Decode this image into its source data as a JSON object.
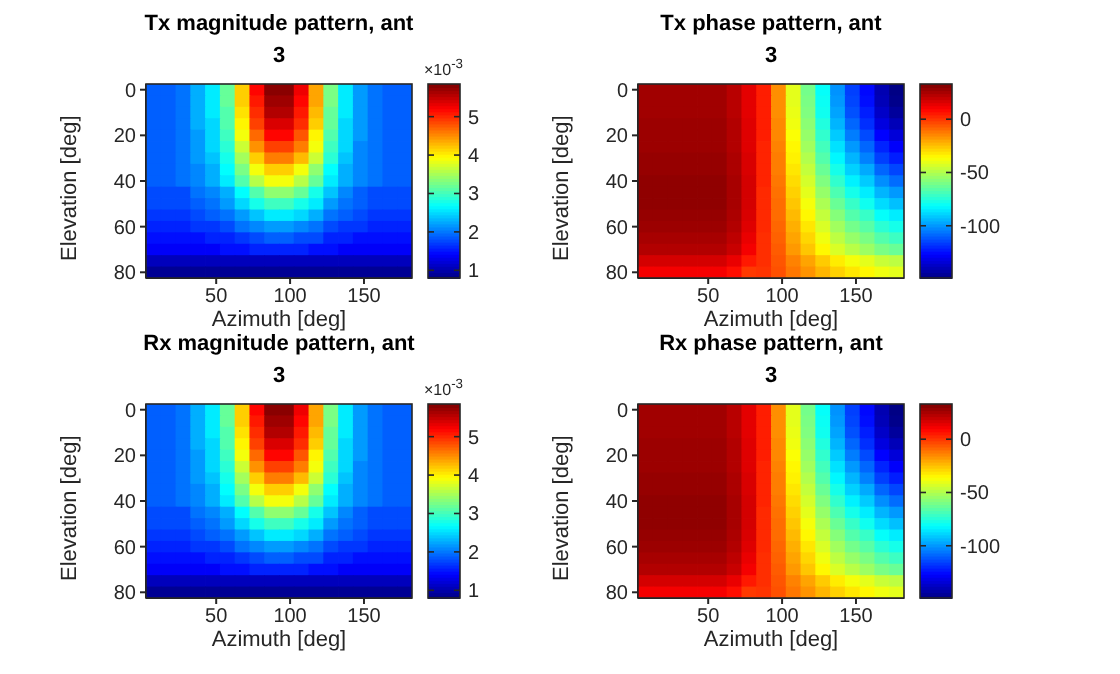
{
  "chart_data": [
    {
      "type": "heatmap",
      "title": "Tx magnitude pattern, ant 3",
      "xlabel": "Azimuth [deg]",
      "ylabel": "Elevation [deg]",
      "annotations": [
        "×10$^{-3}$"
      ],
      "x": [
        7.5,
        17.5,
        27.5,
        37.5,
        47.5,
        57.5,
        67.5,
        77.5,
        87.5,
        97.5,
        107.5,
        117.5,
        127.5,
        137.5,
        147.5,
        157.5,
        167.5,
        177.5
      ],
      "y": [
        0,
        5,
        10,
        15,
        20,
        25,
        30,
        35,
        40,
        45,
        50,
        55,
        60,
        65,
        70,
        75,
        80
      ],
      "xlim": [
        2.5,
        182.5
      ],
      "xticks": [
        50,
        100,
        150
      ],
      "ylim": [
        82.5,
        -2.5
      ],
      "yticks": [
        0,
        20,
        40,
        60,
        80
      ],
      "clim": [
        0.8,
        5.85
      ],
      "cticks": [
        1,
        2,
        3,
        4,
        5
      ],
      "cells": [
        [
          1.9,
          1.9,
          2.0,
          2.3,
          2.6,
          3.2,
          4.2,
          5.2,
          5.8,
          5.8,
          5.3,
          4.4,
          3.3,
          2.6,
          2.2,
          2.0,
          1.9,
          1.9
        ],
        [
          1.9,
          1.9,
          2.0,
          2.3,
          2.6,
          3.2,
          4.2,
          5.1,
          5.7,
          5.7,
          5.2,
          4.4,
          3.3,
          2.6,
          2.2,
          2.0,
          1.9,
          1.9
        ],
        [
          1.9,
          1.9,
          2.0,
          2.3,
          2.6,
          3.1,
          4.1,
          5.0,
          5.6,
          5.6,
          5.1,
          4.3,
          3.2,
          2.6,
          2.2,
          2.0,
          1.9,
          1.9
        ],
        [
          1.9,
          1.9,
          2.0,
          2.3,
          2.5,
          3.1,
          4.0,
          4.9,
          5.4,
          5.4,
          5.0,
          4.2,
          3.2,
          2.5,
          2.2,
          2.0,
          1.9,
          1.9
        ],
        [
          1.9,
          1.9,
          2.0,
          2.2,
          2.5,
          3.0,
          3.9,
          4.7,
          5.2,
          5.2,
          4.8,
          4.0,
          3.1,
          2.5,
          2.2,
          2.0,
          1.9,
          1.9
        ],
        [
          1.9,
          1.9,
          2.0,
          2.2,
          2.5,
          2.9,
          3.7,
          4.5,
          4.9,
          4.9,
          4.6,
          3.9,
          3.0,
          2.5,
          2.1,
          2.0,
          1.9,
          1.9
        ],
        [
          1.9,
          1.9,
          2.0,
          2.2,
          2.4,
          2.8,
          3.5,
          4.2,
          4.6,
          4.6,
          4.3,
          3.7,
          2.9,
          2.4,
          2.1,
          2.0,
          1.9,
          1.9
        ],
        [
          1.9,
          1.9,
          2.0,
          2.1,
          2.3,
          2.7,
          3.3,
          3.9,
          4.2,
          4.2,
          3.9,
          3.4,
          2.7,
          2.3,
          2.1,
          2.0,
          1.9,
          1.9
        ],
        [
          1.9,
          1.9,
          2.0,
          2.1,
          2.3,
          2.6,
          3.1,
          3.6,
          3.9,
          3.9,
          3.6,
          3.2,
          2.6,
          2.3,
          2.1,
          2.0,
          1.9,
          1.9
        ],
        [
          1.8,
          1.8,
          1.8,
          2.0,
          2.1,
          2.3,
          2.7,
          3.1,
          3.4,
          3.4,
          3.2,
          2.8,
          2.4,
          2.1,
          1.9,
          1.8,
          1.8,
          1.8
        ],
        [
          1.8,
          1.8,
          1.8,
          1.9,
          2.0,
          2.2,
          2.5,
          2.8,
          3.0,
          3.0,
          2.8,
          2.6,
          2.2,
          2.0,
          1.9,
          1.8,
          1.8,
          1.8
        ],
        [
          1.7,
          1.7,
          1.7,
          1.8,
          1.9,
          2.0,
          2.2,
          2.4,
          2.6,
          2.6,
          2.5,
          2.3,
          2.0,
          1.9,
          1.8,
          1.7,
          1.7,
          1.7
        ],
        [
          1.6,
          1.6,
          1.6,
          1.7,
          1.7,
          1.8,
          2.0,
          2.1,
          2.2,
          2.2,
          2.1,
          2.0,
          1.8,
          1.7,
          1.7,
          1.6,
          1.6,
          1.6
        ],
        [
          1.5,
          1.5,
          1.5,
          1.5,
          1.6,
          1.6,
          1.7,
          1.8,
          1.9,
          1.9,
          1.8,
          1.8,
          1.6,
          1.6,
          1.5,
          1.5,
          1.5,
          1.5
        ],
        [
          1.4,
          1.4,
          1.4,
          1.4,
          1.4,
          1.5,
          1.5,
          1.6,
          1.6,
          1.6,
          1.6,
          1.5,
          1.5,
          1.4,
          1.4,
          1.4,
          1.4,
          1.4
        ],
        [
          1.1,
          1.1,
          1.1,
          1.1,
          1.1,
          1.1,
          1.1,
          1.1,
          1.1,
          1.1,
          1.1,
          1.1,
          1.1,
          1.1,
          1.1,
          1.1,
          1.1,
          1.1
        ],
        [
          0.9,
          0.9,
          0.9,
          0.9,
          0.9,
          0.9,
          0.9,
          0.9,
          0.9,
          0.9,
          0.9,
          0.9,
          0.9,
          0.9,
          0.9,
          0.9,
          0.9,
          0.9
        ]
      ]
    },
    {
      "type": "heatmap",
      "title": "Tx phase pattern, ant 3",
      "xlabel": "Azimuth [deg]",
      "ylabel": "Elevation [deg]",
      "x": [
        7.5,
        17.5,
        27.5,
        37.5,
        47.5,
        57.5,
        67.5,
        77.5,
        87.5,
        97.5,
        107.5,
        117.5,
        127.5,
        137.5,
        147.5,
        157.5,
        167.5,
        177.5
      ],
      "y": [
        0,
        5,
        10,
        15,
        20,
        25,
        30,
        35,
        40,
        45,
        50,
        55,
        60,
        65,
        70,
        75,
        80
      ],
      "xlim": [
        2.5,
        182.5
      ],
      "xticks": [
        50,
        100,
        150
      ],
      "ylim": [
        82.5,
        -2.5
      ],
      "yticks": [
        0,
        20,
        40,
        60,
        80
      ],
      "clim": [
        -149,
        33
      ],
      "cticks": [
        0,
        -50,
        -100
      ],
      "cells": [
        [
          27,
          27,
          27,
          27,
          27,
          27,
          23,
          15,
          5,
          -15,
          -40,
          -60,
          -80,
          -100,
          -115,
          -125,
          -140,
          -148
        ],
        [
          27,
          27,
          27,
          27,
          27,
          27,
          23,
          15,
          5,
          -15,
          -40,
          -59,
          -79,
          -99,
          -114,
          -124,
          -139,
          -147
        ],
        [
          27,
          27,
          27,
          27,
          27,
          27,
          23,
          15,
          5,
          -15,
          -39,
          -58,
          -78,
          -97,
          -112,
          -121,
          -136,
          -144
        ],
        [
          28,
          28,
          28,
          28,
          28,
          28,
          24,
          16,
          5,
          -14,
          -38,
          -56,
          -75,
          -94,
          -108,
          -118,
          -132,
          -139
        ],
        [
          28,
          28,
          28,
          28,
          28,
          28,
          24,
          16,
          5,
          -14,
          -36,
          -54,
          -72,
          -90,
          -104,
          -113,
          -126,
          -133
        ],
        [
          28,
          28,
          28,
          28,
          28,
          28,
          24,
          16,
          4,
          -13,
          -34,
          -52,
          -69,
          -86,
          -99,
          -108,
          -120,
          -127
        ],
        [
          29,
          29,
          29,
          29,
          29,
          29,
          25,
          17,
          4,
          -12,
          -33,
          -49,
          -66,
          -82,
          -94,
          -103,
          -115,
          -121
        ],
        [
          29,
          29,
          29,
          29,
          29,
          29,
          25,
          17,
          4,
          -12,
          -31,
          -46,
          -62,
          -77,
          -89,
          -96,
          -108,
          -114
        ],
        [
          30,
          30,
          30,
          30,
          30,
          30,
          26,
          18,
          4,
          -11,
          -29,
          -43,
          -58,
          -72,
          -83,
          -90,
          -101,
          -107
        ],
        [
          30,
          30,
          30,
          30,
          30,
          30,
          26,
          18,
          3,
          -10,
          -27,
          -40,
          -54,
          -67,
          -77,
          -84,
          -94,
          -99
        ],
        [
          30,
          30,
          30,
          30,
          30,
          30,
          26,
          18,
          3,
          -9,
          -25,
          -37,
          -50,
          -62,
          -71,
          -78,
          -87,
          -92
        ],
        [
          29,
          29,
          29,
          29,
          29,
          29,
          25,
          17,
          3,
          -9,
          -23,
          -34,
          -46,
          -57,
          -66,
          -71,
          -80,
          -84
        ],
        [
          28,
          28,
          28,
          28,
          28,
          28,
          24,
          16,
          3,
          -8,
          -21,
          -31,
          -42,
          -52,
          -60,
          -65,
          -73,
          -77
        ],
        [
          26,
          26,
          26,
          26,
          26,
          26,
          22,
          14,
          2,
          -7,
          -19,
          -28,
          -38,
          -47,
          -54,
          -59,
          -66,
          -70
        ],
        [
          24,
          24,
          24,
          24,
          24,
          24,
          20,
          12,
          2,
          -6,
          -17,
          -25,
          -34,
          -42,
          -48,
          -53,
          -59,
          -62
        ],
        [
          18,
          18,
          18,
          18,
          18,
          18,
          14,
          6,
          2,
          -5,
          -13,
          -19,
          -26,
          -32,
          -37,
          -40,
          -45,
          -47
        ],
        [
          12,
          12,
          12,
          12,
          12,
          12,
          8,
          0,
          1,
          -4,
          -11,
          -16,
          -22,
          -27,
          -31,
          -34,
          -38,
          -40
        ]
      ]
    },
    {
      "type": "heatmap",
      "title": "Rx magnitude pattern, ant 3",
      "xlabel": "Azimuth [deg]",
      "ylabel": "Elevation [deg]",
      "annotations": [
        "×10$^{-3}$"
      ],
      "x": [
        7.5,
        17.5,
        27.5,
        37.5,
        47.5,
        57.5,
        67.5,
        77.5,
        87.5,
        97.5,
        107.5,
        117.5,
        127.5,
        137.5,
        147.5,
        157.5,
        167.5,
        177.5
      ],
      "y": [
        0,
        5,
        10,
        15,
        20,
        25,
        30,
        35,
        40,
        45,
        50,
        55,
        60,
        65,
        70,
        75,
        80
      ],
      "xlim": [
        2.5,
        182.5
      ],
      "xticks": [
        50,
        100,
        150
      ],
      "ylim": [
        82.5,
        -2.5
      ],
      "yticks": [
        0,
        20,
        40,
        60,
        80
      ],
      "clim": [
        0.8,
        5.85
      ],
      "cticks": [
        1,
        2,
        3,
        4,
        5
      ],
      "cells": [
        [
          1.9,
          1.9,
          2.0,
          2.3,
          2.6,
          3.2,
          4.2,
          5.2,
          5.8,
          5.8,
          5.3,
          4.4,
          3.3,
          2.6,
          2.2,
          2.0,
          1.9,
          1.9
        ],
        [
          1.9,
          1.9,
          2.0,
          2.3,
          2.6,
          3.2,
          4.2,
          5.1,
          5.7,
          5.7,
          5.2,
          4.4,
          3.3,
          2.6,
          2.2,
          2.0,
          1.9,
          1.9
        ],
        [
          1.9,
          1.9,
          2.0,
          2.3,
          2.6,
          3.1,
          4.1,
          5.0,
          5.6,
          5.6,
          5.1,
          4.3,
          3.2,
          2.6,
          2.2,
          2.0,
          1.9,
          1.9
        ],
        [
          1.9,
          1.9,
          2.0,
          2.3,
          2.5,
          3.1,
          4.0,
          4.9,
          5.4,
          5.4,
          5.0,
          4.2,
          3.2,
          2.5,
          2.2,
          2.0,
          1.9,
          1.9
        ],
        [
          1.9,
          1.9,
          2.0,
          2.2,
          2.5,
          3.0,
          3.9,
          4.7,
          5.2,
          5.2,
          4.8,
          4.0,
          3.1,
          2.5,
          2.2,
          2.0,
          1.9,
          1.9
        ],
        [
          1.9,
          1.9,
          2.0,
          2.2,
          2.5,
          2.9,
          3.7,
          4.5,
          4.9,
          4.9,
          4.6,
          3.9,
          3.0,
          2.5,
          2.1,
          2.0,
          1.9,
          1.9
        ],
        [
          1.9,
          1.9,
          2.0,
          2.2,
          2.4,
          2.8,
          3.5,
          4.2,
          4.6,
          4.6,
          4.3,
          3.7,
          2.9,
          2.4,
          2.1,
          2.0,
          1.9,
          1.9
        ],
        [
          1.9,
          1.9,
          2.0,
          2.1,
          2.3,
          2.7,
          3.3,
          3.9,
          4.2,
          4.2,
          3.9,
          3.4,
          2.7,
          2.3,
          2.1,
          2.0,
          1.9,
          1.9
        ],
        [
          1.9,
          1.9,
          2.0,
          2.1,
          2.3,
          2.6,
          3.1,
          3.6,
          3.9,
          3.9,
          3.6,
          3.2,
          2.6,
          2.3,
          2.1,
          2.0,
          1.9,
          1.9
        ],
        [
          1.8,
          1.8,
          1.8,
          2.0,
          2.1,
          2.3,
          2.7,
          3.1,
          3.4,
          3.4,
          3.2,
          2.8,
          2.4,
          2.1,
          1.9,
          1.8,
          1.8,
          1.8
        ],
        [
          1.8,
          1.8,
          1.8,
          1.9,
          2.0,
          2.2,
          2.5,
          2.8,
          3.0,
          3.0,
          2.8,
          2.6,
          2.2,
          2.0,
          1.9,
          1.8,
          1.8,
          1.8
        ],
        [
          1.7,
          1.7,
          1.7,
          1.8,
          1.9,
          2.0,
          2.2,
          2.4,
          2.6,
          2.6,
          2.5,
          2.3,
          2.0,
          1.9,
          1.8,
          1.7,
          1.7,
          1.7
        ],
        [
          1.6,
          1.6,
          1.6,
          1.7,
          1.7,
          1.8,
          2.0,
          2.1,
          2.2,
          2.2,
          2.1,
          2.0,
          1.8,
          1.7,
          1.7,
          1.6,
          1.6,
          1.6
        ],
        [
          1.5,
          1.5,
          1.5,
          1.5,
          1.6,
          1.6,
          1.7,
          1.8,
          1.9,
          1.9,
          1.8,
          1.8,
          1.6,
          1.6,
          1.5,
          1.5,
          1.5,
          1.5
        ],
        [
          1.4,
          1.4,
          1.4,
          1.4,
          1.4,
          1.5,
          1.5,
          1.6,
          1.6,
          1.6,
          1.6,
          1.5,
          1.5,
          1.4,
          1.4,
          1.4,
          1.4,
          1.4
        ],
        [
          1.1,
          1.1,
          1.1,
          1.1,
          1.1,
          1.1,
          1.1,
          1.1,
          1.1,
          1.1,
          1.1,
          1.1,
          1.1,
          1.1,
          1.1,
          1.1,
          1.1,
          1.1
        ],
        [
          0.9,
          0.9,
          0.9,
          0.9,
          0.9,
          0.9,
          0.9,
          0.9,
          0.9,
          0.9,
          0.9,
          0.9,
          0.9,
          0.9,
          0.9,
          0.9,
          0.9,
          0.9
        ]
      ]
    },
    {
      "type": "heatmap",
      "title": "Rx phase pattern, ant 3",
      "xlabel": "Azimuth [deg]",
      "ylabel": "Elevation [deg]",
      "x": [
        7.5,
        17.5,
        27.5,
        37.5,
        47.5,
        57.5,
        67.5,
        77.5,
        87.5,
        97.5,
        107.5,
        117.5,
        127.5,
        137.5,
        147.5,
        157.5,
        167.5,
        177.5
      ],
      "y": [
        0,
        5,
        10,
        15,
        20,
        25,
        30,
        35,
        40,
        45,
        50,
        55,
        60,
        65,
        70,
        75,
        80
      ],
      "xlim": [
        2.5,
        182.5
      ],
      "xticks": [
        50,
        100,
        150
      ],
      "ylim": [
        82.5,
        -2.5
      ],
      "yticks": [
        0,
        20,
        40,
        60,
        80
      ],
      "clim": [
        -149,
        33
      ],
      "cticks": [
        0,
        -50,
        -100
      ],
      "cells": [
        [
          27,
          27,
          27,
          27,
          27,
          27,
          23,
          15,
          5,
          -15,
          -40,
          -60,
          -80,
          -100,
          -115,
          -125,
          -140,
          -148
        ],
        [
          27,
          27,
          27,
          27,
          27,
          27,
          23,
          15,
          5,
          -15,
          -40,
          -59,
          -79,
          -99,
          -114,
          -124,
          -139,
          -147
        ],
        [
          27,
          27,
          27,
          27,
          27,
          27,
          23,
          15,
          5,
          -15,
          -39,
          -58,
          -78,
          -97,
          -112,
          -121,
          -136,
          -144
        ],
        [
          28,
          28,
          28,
          28,
          28,
          28,
          24,
          16,
          5,
          -14,
          -38,
          -56,
          -75,
          -94,
          -108,
          -118,
          -132,
          -139
        ],
        [
          28,
          28,
          28,
          28,
          28,
          28,
          24,
          16,
          5,
          -14,
          -36,
          -54,
          -72,
          -90,
          -104,
          -113,
          -126,
          -133
        ],
        [
          28,
          28,
          28,
          28,
          28,
          28,
          24,
          16,
          4,
          -13,
          -34,
          -52,
          -69,
          -86,
          -99,
          -108,
          -120,
          -127
        ],
        [
          29,
          29,
          29,
          29,
          29,
          29,
          25,
          17,
          4,
          -12,
          -33,
          -49,
          -66,
          -82,
          -94,
          -103,
          -115,
          -121
        ],
        [
          29,
          29,
          29,
          29,
          29,
          29,
          25,
          17,
          4,
          -12,
          -31,
          -46,
          -62,
          -77,
          -89,
          -96,
          -108,
          -114
        ],
        [
          30,
          30,
          30,
          30,
          30,
          30,
          26,
          18,
          4,
          -11,
          -29,
          -43,
          -58,
          -72,
          -83,
          -90,
          -101,
          -107
        ],
        [
          30,
          30,
          30,
          30,
          30,
          30,
          26,
          18,
          3,
          -10,
          -27,
          -40,
          -54,
          -67,
          -77,
          -84,
          -94,
          -99
        ],
        [
          30,
          30,
          30,
          30,
          30,
          30,
          26,
          18,
          3,
          -9,
          -25,
          -37,
          -50,
          -62,
          -71,
          -78,
          -87,
          -92
        ],
        [
          29,
          29,
          29,
          29,
          29,
          29,
          25,
          17,
          3,
          -9,
          -23,
          -34,
          -46,
          -57,
          -66,
          -71,
          -80,
          -84
        ],
        [
          28,
          28,
          28,
          28,
          28,
          28,
          24,
          16,
          3,
          -8,
          -21,
          -31,
          -42,
          -52,
          -60,
          -65,
          -73,
          -77
        ],
        [
          26,
          26,
          26,
          26,
          26,
          26,
          22,
          14,
          2,
          -7,
          -19,
          -28,
          -38,
          -47,
          -54,
          -59,
          -66,
          -70
        ],
        [
          24,
          24,
          24,
          24,
          24,
          24,
          20,
          12,
          2,
          -6,
          -17,
          -25,
          -34,
          -42,
          -48,
          -53,
          -59,
          -62
        ],
        [
          18,
          18,
          18,
          18,
          18,
          18,
          14,
          6,
          2,
          -5,
          -13,
          -19,
          -26,
          -32,
          -37,
          -40,
          -45,
          -47
        ],
        [
          12,
          12,
          12,
          12,
          12,
          12,
          8,
          0,
          1,
          -4,
          -11,
          -16,
          -22,
          -27,
          -31,
          -34,
          -38,
          -40
        ]
      ]
    }
  ]
}
